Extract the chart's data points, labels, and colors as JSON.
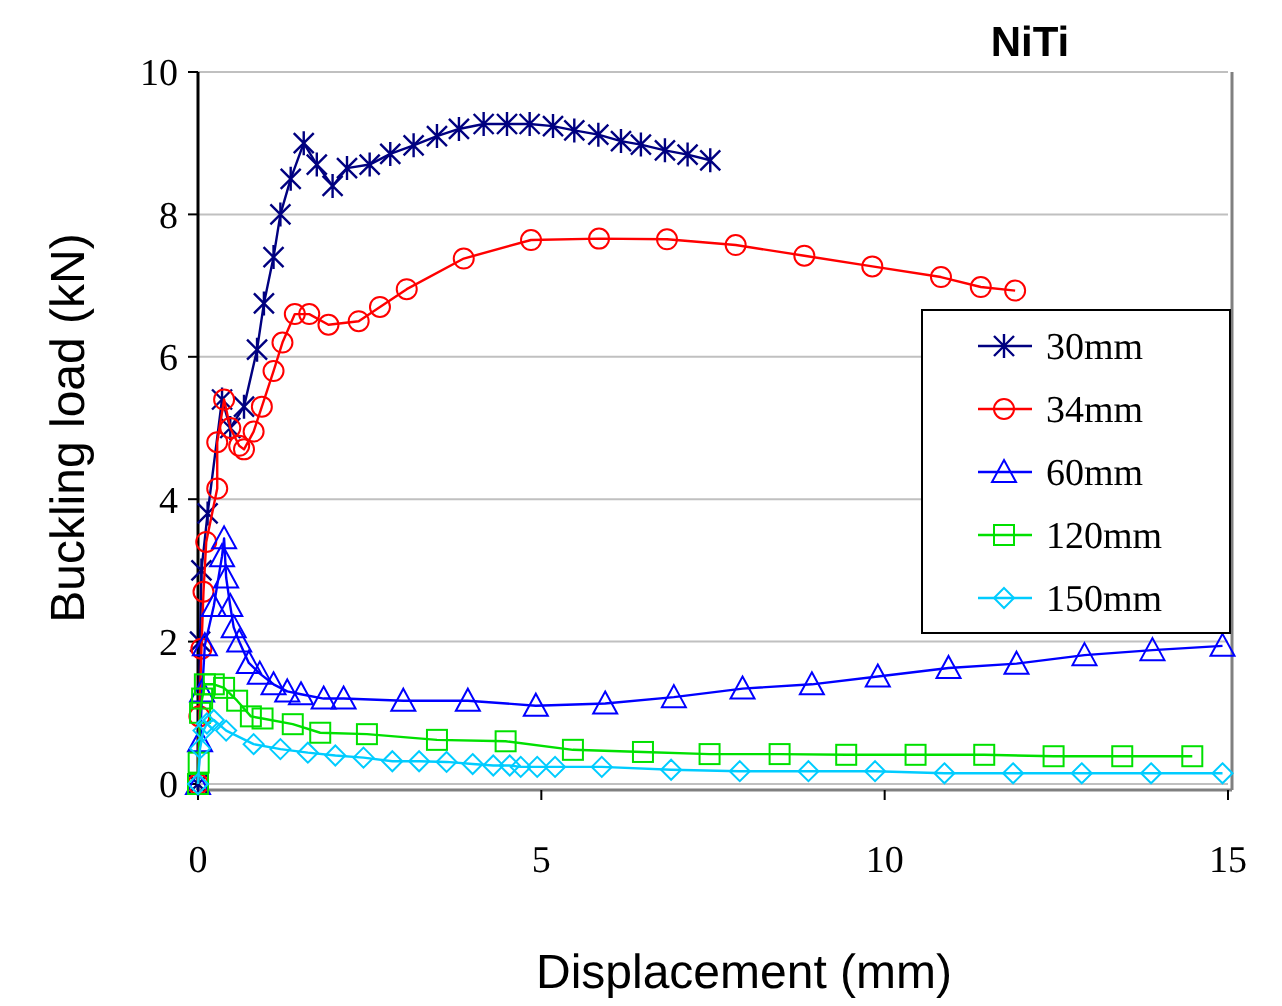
{
  "chart_data": {
    "type": "line",
    "title": "NiTi",
    "xlabel": "Displacement (mm)",
    "ylabel": "Buckling load (kN)",
    "xlim": [
      0,
      15
    ],
    "xticks": [
      0,
      5,
      10,
      15
    ],
    "ylim": [
      0,
      10
    ],
    "yticks": [
      0,
      2,
      4,
      6,
      8,
      10
    ],
    "grid": "y",
    "legend": "right",
    "line_style": "solid",
    "series": [
      {
        "name": "30mm",
        "color": "#000080",
        "marker": "cross",
        "x": [
          0,
          0.02,
          0.03,
          0.05,
          0.14,
          0.35,
          0.47,
          0.67,
          0.86,
          0.96,
          1.1,
          1.2,
          1.35,
          1.54,
          1.73,
          1.96,
          2.17,
          2.5,
          2.8,
          3.14,
          3.48,
          3.8,
          4.16,
          4.5,
          4.83,
          5.17,
          5.48,
          5.83,
          6.16,
          6.45,
          6.8,
          7.13,
          7.46
        ],
        "values": [
          0,
          null,
          2,
          3,
          3.8,
          5.4,
          5,
          5.3,
          6.1,
          6.75,
          7.4,
          8,
          8.5,
          9,
          8.7,
          8.4,
          8.65,
          8.7,
          8.85,
          8.97,
          9.1,
          9.2,
          9.27,
          9.27,
          9.27,
          9.24,
          9.18,
          9.12,
          9.03,
          8.98,
          8.9,
          8.84,
          8.76
        ]
      },
      {
        "name": "34mm",
        "color": "#ff0000",
        "marker": "circle",
        "x": [
          0,
          0.02,
          0.05,
          0.08,
          0.12,
          0.28,
          0.28,
          0.38,
          0.47,
          0.6,
          0.67,
          0.81,
          0.93,
          1.1,
          1.23,
          1.41,
          1.62,
          1.9,
          2.34,
          2.65,
          3.04,
          3.87,
          4.85,
          5.84,
          6.83,
          7.83,
          8.83,
          9.82,
          10.82,
          11.4,
          11.9
        ],
        "values": [
          0,
          0.95,
          1.9,
          2.7,
          3.4,
          4.15,
          4.8,
          5.4,
          5,
          4.75,
          4.7,
          4.95,
          5.3,
          5.8,
          6.2,
          6.6,
          6.6,
          6.45,
          6.5,
          6.7,
          6.95,
          7.38,
          7.64,
          7.66,
          7.65,
          7.57,
          7.42,
          7.27,
          7.12,
          6.98,
          6.93
        ]
      },
      {
        "name": "60mm",
        "color": "#0000ff",
        "marker": "triangle",
        "x": [
          0,
          0.03,
          0.06,
          0.1,
          0.23,
          0.35,
          0.38,
          0.41,
          0.47,
          0.52,
          0.6,
          0.74,
          0.9,
          1.1,
          1.3,
          1.5,
          1.83,
          2.12,
          2.99,
          3.93,
          4.92,
          5.93,
          6.93,
          7.93,
          8.94,
          9.9,
          10.93,
          11.92,
          12.91,
          13.9,
          14.92
        ],
        "values": [
          0,
          0.6,
          1.3,
          1.95,
          2.5,
          3.2,
          3.45,
          2.9,
          2.5,
          2.2,
          2,
          1.7,
          1.55,
          1.4,
          1.3,
          1.26,
          1.2,
          1.2,
          1.17,
          1.17,
          1.1,
          1.13,
          1.22,
          1.34,
          1.4,
          1.51,
          1.63,
          1.69,
          1.81,
          1.88,
          1.94
        ]
      },
      {
        "name": "120mm",
        "color": "#00e000",
        "marker": "square",
        "x": [
          0,
          0.01,
          0.03,
          0.06,
          0.1,
          0.23,
          0.38,
          0.57,
          0.77,
          0.94,
          1.38,
          1.78,
          2.46,
          3.48,
          4.48,
          5.46,
          6.48,
          7.45,
          8.47,
          9.44,
          10.45,
          11.45,
          12.46,
          13.46,
          14.48
        ],
        "values": [
          0,
          0.3,
          1,
          1.2,
          1.4,
          1.4,
          1.35,
          1.17,
          0.95,
          0.92,
          0.84,
          0.72,
          0.7,
          0.62,
          0.6,
          0.48,
          0.45,
          0.42,
          0.42,
          0.41,
          0.41,
          0.41,
          0.39,
          0.39,
          0.39
        ]
      },
      {
        "name": "150mm",
        "color": "#00ccff",
        "marker": "diamond",
        "x": [
          0,
          0.03,
          0.08,
          0.13,
          0.23,
          0.41,
          0.81,
          1.2,
          1.6,
          2,
          2.41,
          2.83,
          3.22,
          3.62,
          4,
          4.3,
          4.54,
          4.7,
          4.94,
          5.2,
          5.88,
          6.89,
          7.89,
          8.89,
          9.86,
          10.87,
          11.87,
          12.87,
          13.88,
          14.92
        ],
        "values": [
          0,
          0.5,
          0.75,
          0.85,
          0.9,
          0.75,
          0.56,
          0.49,
          0.44,
          0.4,
          0.37,
          0.32,
          0.32,
          0.31,
          0.28,
          0.26,
          0.26,
          0.24,
          0.24,
          0.24,
          0.24,
          0.2,
          0.18,
          0.18,
          0.18,
          0.15,
          0.15,
          0.15,
          0.15,
          0.15
        ]
      }
    ]
  }
}
